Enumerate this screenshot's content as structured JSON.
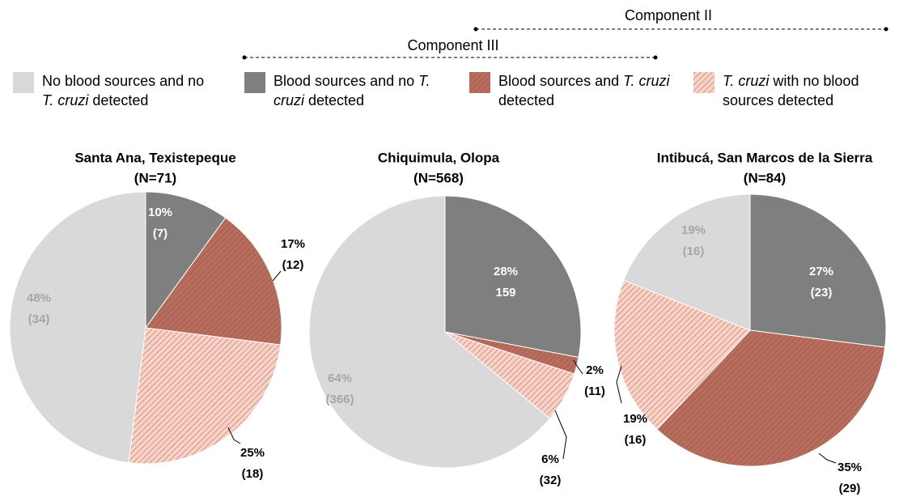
{
  "annotations": [
    {
      "text": "Component II"
    },
    {
      "text": "Component III"
    }
  ],
  "legend": {
    "items": [
      {
        "lines": [
          "No blood sources and no",
          "T. cruzi detected"
        ],
        "color": "#d9d9d9",
        "hatch": false
      },
      {
        "lines": [
          "Blood sources and no T.",
          "cruzi detected"
        ],
        "color": "#7f7f7f",
        "hatch": false
      },
      {
        "lines": [
          "Blood sources and T. cruzi",
          "detected"
        ],
        "color": "#b56f5f",
        "hatch": true
      },
      {
        "lines": [
          "T. cruzi with no blood",
          "sources detected"
        ],
        "color": "#f8d3c8",
        "hatch": true
      }
    ]
  },
  "chart_data": [
    {
      "type": "pie",
      "title": "Santa Ana, Texistepeque",
      "subtitle": "(N=71)",
      "values": [
        10,
        17,
        25,
        48
      ],
      "value_labels": [
        "10%",
        "17%",
        "25%",
        "48%"
      ],
      "count_labels": [
        "(7)",
        "(12)",
        "(18)",
        "(34)"
      ],
      "colors": [
        "#7f7f7f",
        "#b56f5f",
        "#f8d3c8",
        "#d9d9d9"
      ],
      "hatch": [
        false,
        true,
        true,
        false
      ]
    },
    {
      "type": "pie",
      "title": "Chiquimula, Olopa",
      "subtitle": "(N=568)",
      "values": [
        28,
        2,
        6,
        64
      ],
      "value_labels": [
        "28%",
        "2%",
        "6%",
        "64%"
      ],
      "count_labels": [
        "159",
        "(11)",
        "(32)",
        "(366)"
      ],
      "colors": [
        "#7f7f7f",
        "#b56f5f",
        "#f8d3c8",
        "#d9d9d9"
      ],
      "hatch": [
        false,
        true,
        true,
        false
      ]
    },
    {
      "type": "pie",
      "title": "Intibucá, San Marcos de la Sierra",
      "subtitle": "(N=84)",
      "values": [
        27,
        35,
        19,
        19
      ],
      "value_labels": [
        "27%",
        "35%",
        "19%",
        "19%"
      ],
      "count_labels": [
        "(23)",
        "(29)",
        "(16)",
        "(16)"
      ],
      "colors": [
        "#7f7f7f",
        "#b56f5f",
        "#f8d3c8",
        "#d9d9d9"
      ],
      "hatch": [
        false,
        true,
        true,
        false
      ]
    }
  ]
}
